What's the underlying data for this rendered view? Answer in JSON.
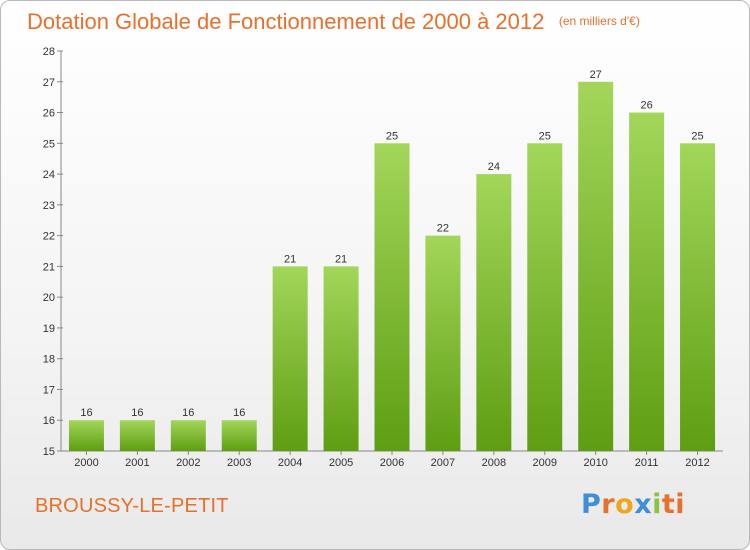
{
  "header": {
    "title": "Dotation Globale de Fonctionnement de 2000 à 2012",
    "subtitle": "(en milliers d'€)"
  },
  "footer": {
    "commune": "BROUSSY-LE-PETIT",
    "logo_letters": [
      "P",
      "r",
      "o",
      "x",
      "i",
      "ti"
    ]
  },
  "chart_data": {
    "type": "bar",
    "title": "Dotation Globale de Fonctionnement de 2000 à 2012",
    "subtitle": "(en milliers d'€)",
    "xlabel": "",
    "ylabel": "",
    "categories": [
      "2000",
      "2001",
      "2002",
      "2003",
      "2004",
      "2005",
      "2006",
      "2007",
      "2008",
      "2009",
      "2010",
      "2011",
      "2012"
    ],
    "values": [
      16,
      16,
      16,
      16,
      21,
      21,
      25,
      22,
      24,
      25,
      27,
      26,
      25
    ],
    "ylim": [
      15,
      28
    ],
    "yticks": [
      15,
      16,
      17,
      18,
      19,
      20,
      21,
      22,
      23,
      24,
      25,
      26,
      27,
      28
    ],
    "grid": false,
    "legend": "none",
    "colors": {
      "bar_top": "#9fd456",
      "bar_bottom": "#5e9e12",
      "title": "#e8702a"
    }
  }
}
